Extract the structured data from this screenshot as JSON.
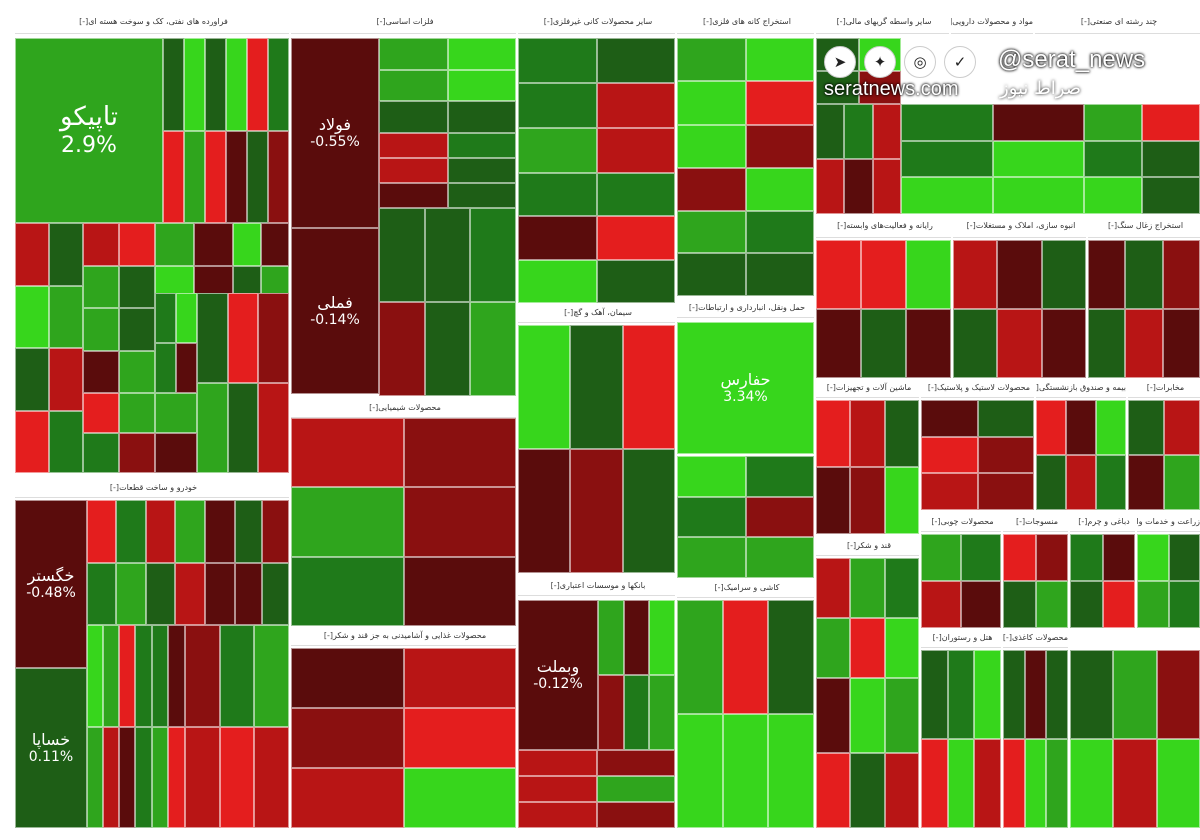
{
  "colors": {
    "strong_up": "#37d61c",
    "up": "#2fa51d",
    "mild_up": "#1f7a1a",
    "flat_up": "#1e5e16",
    "strong_down": "#e41e1e",
    "down": "#b81515",
    "mild_down": "#8a1010",
    "flat_down": "#5a0c0c"
  },
  "watermark": {
    "handle": "@serat_news",
    "site": "seratnews.com",
    "brand": "صراط نیوز",
    "icons": [
      "telegram-icon",
      "twitter-icon",
      "instagram-icon",
      "check-icon"
    ]
  },
  "headers": [
    {
      "name": "header-chemical",
      "label": "فراورده های نفتی، کک و سوخت هسته ای",
      "toggle": "[-]"
    },
    {
      "name": "header-base-metals",
      "label": "فلزات اساسی",
      "toggle": "[-]"
    },
    {
      "name": "header-mineral",
      "label": "سایر محصولات کانی غیرفلزی",
      "toggle": "[-]"
    },
    {
      "name": "header-refinery",
      "label": "استخراج کانه های فلزی",
      "toggle": "[-]"
    },
    {
      "name": "header-finance",
      "label": "سایر واسطه گریهای مالی",
      "toggle": "[-]"
    },
    {
      "name": "header-chem2",
      "label": "مواد و محصولات دارویی",
      "toggle": "[-]"
    },
    {
      "name": "header-invest",
      "label": "چند رشته ای صنعتی",
      "toggle": "[-]"
    },
    {
      "name": "header-retail",
      "label": "خودرو و ساخت قطعات",
      "toggle": "[-]"
    },
    {
      "name": "header-products-chem",
      "label": "محصولات شیمیایی",
      "toggle": "[-]"
    },
    {
      "name": "header-cement",
      "label": "سیمان، آهک و گچ",
      "toggle": "[-]"
    },
    {
      "name": "header-transport",
      "label": "حمل ونقل، انبارداری و ارتباطات",
      "toggle": "[-]"
    },
    {
      "name": "header-banks",
      "label": "بانکها و موسسات اعتباری",
      "toggle": "[-]"
    },
    {
      "name": "header-food",
      "label": "محصولات غذایی و آشامیدنی به جز قند و شکر",
      "toggle": "[-]"
    },
    {
      "name": "header-tile",
      "label": "کاشی و سرامیک",
      "toggle": "[-]"
    },
    {
      "name": "header-software",
      "label": "رایانه و فعالیت‌های وابسته",
      "toggle": "[-]"
    },
    {
      "name": "header-construct",
      "label": "انبوه سازی، املاک و مستغلات",
      "toggle": "[-]"
    },
    {
      "name": "header-coal",
      "label": "استخراج زغال سنگ",
      "toggle": "[-]"
    },
    {
      "name": "header-electric",
      "label": "ماشین آلات و تجهیزات",
      "toggle": "[-]"
    },
    {
      "name": "header-rubber",
      "label": "محصولات لاستیک و پلاستیک",
      "toggle": "[-]"
    },
    {
      "name": "header-insurance",
      "label": "بیمه و صندوق بازنشستگی",
      "toggle": "[-]"
    },
    {
      "name": "header-telecom",
      "label": "مخابرات",
      "toggle": "[-]"
    },
    {
      "name": "header-sugar",
      "label": "قند و شکر",
      "toggle": "[-]"
    },
    {
      "name": "header-wood",
      "label": "محصولات چوبی",
      "toggle": "[-]"
    },
    {
      "name": "header-textile",
      "label": "منسوجات",
      "toggle": "[-]"
    },
    {
      "name": "header-leather",
      "label": "دباغی و چرم",
      "toggle": "[-]"
    },
    {
      "name": "header-agri",
      "label": "زراعت و خدمات وابسته",
      "toggle": "[-]"
    },
    {
      "name": "header-hotel",
      "label": "هتل و رستوران",
      "toggle": "[-]"
    },
    {
      "name": "header-paper",
      "label": "محصولات کاغذی",
      "toggle": "[-]"
    }
  ],
  "big_tiles": [
    {
      "name": "tile-tapico",
      "symbol": "تاپیکو",
      "change": "2.9%"
    },
    {
      "name": "tile-foolad",
      "symbol": "فولاد",
      "change": "-0.55%"
    },
    {
      "name": "tile-fameli",
      "symbol": "فملی",
      "change": "-0.14%"
    },
    {
      "name": "tile-hafarس",
      "symbol": "حفارس",
      "change": "3.34%"
    },
    {
      "name": "tile-vebmellat",
      "symbol": "وبملت",
      "change": "-0.12%"
    },
    {
      "name": "tile-khodro",
      "symbol": "خگستر",
      "change": "-0.48%"
    },
    {
      "name": "tile-saipa",
      "symbol": "خساپا",
      "change": "0.11%"
    }
  ]
}
